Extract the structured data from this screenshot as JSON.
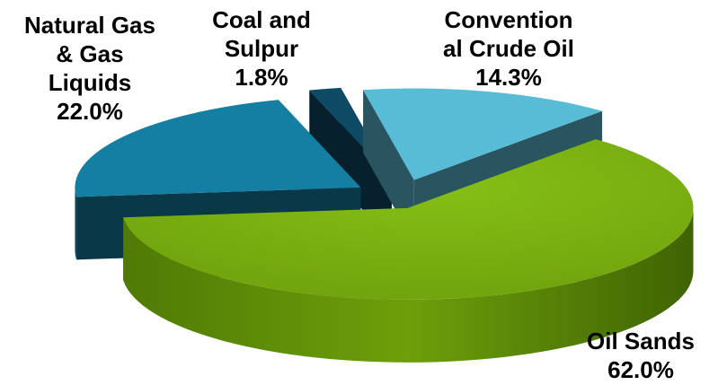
{
  "chart_data": {
    "type": "pie",
    "style": "3d-exploded",
    "title": "",
    "categories": [
      "Conventional Crude Oil",
      "Oil Sands",
      "Natural Gas & Gas Liquids",
      "Coal and Sulpur"
    ],
    "values": [
      14.3,
      62.0,
      22.0,
      1.8
    ],
    "colors": [
      "#58bcd6",
      "#76ad0e",
      "#147fa2",
      "#0d4a63"
    ],
    "labels": [
      {
        "lines": [
          "Convention",
          "al Crude Oil"
        ],
        "value": "14.3%"
      },
      {
        "lines": [
          "Oil Sands"
        ],
        "value": "62.0%"
      },
      {
        "lines": [
          "Natural Gas",
          "& Gas",
          "Liquids"
        ],
        "value": "22.0%"
      },
      {
        "lines": [
          "Coal and",
          "Sulpur"
        ],
        "value": "1.8%"
      }
    ]
  }
}
